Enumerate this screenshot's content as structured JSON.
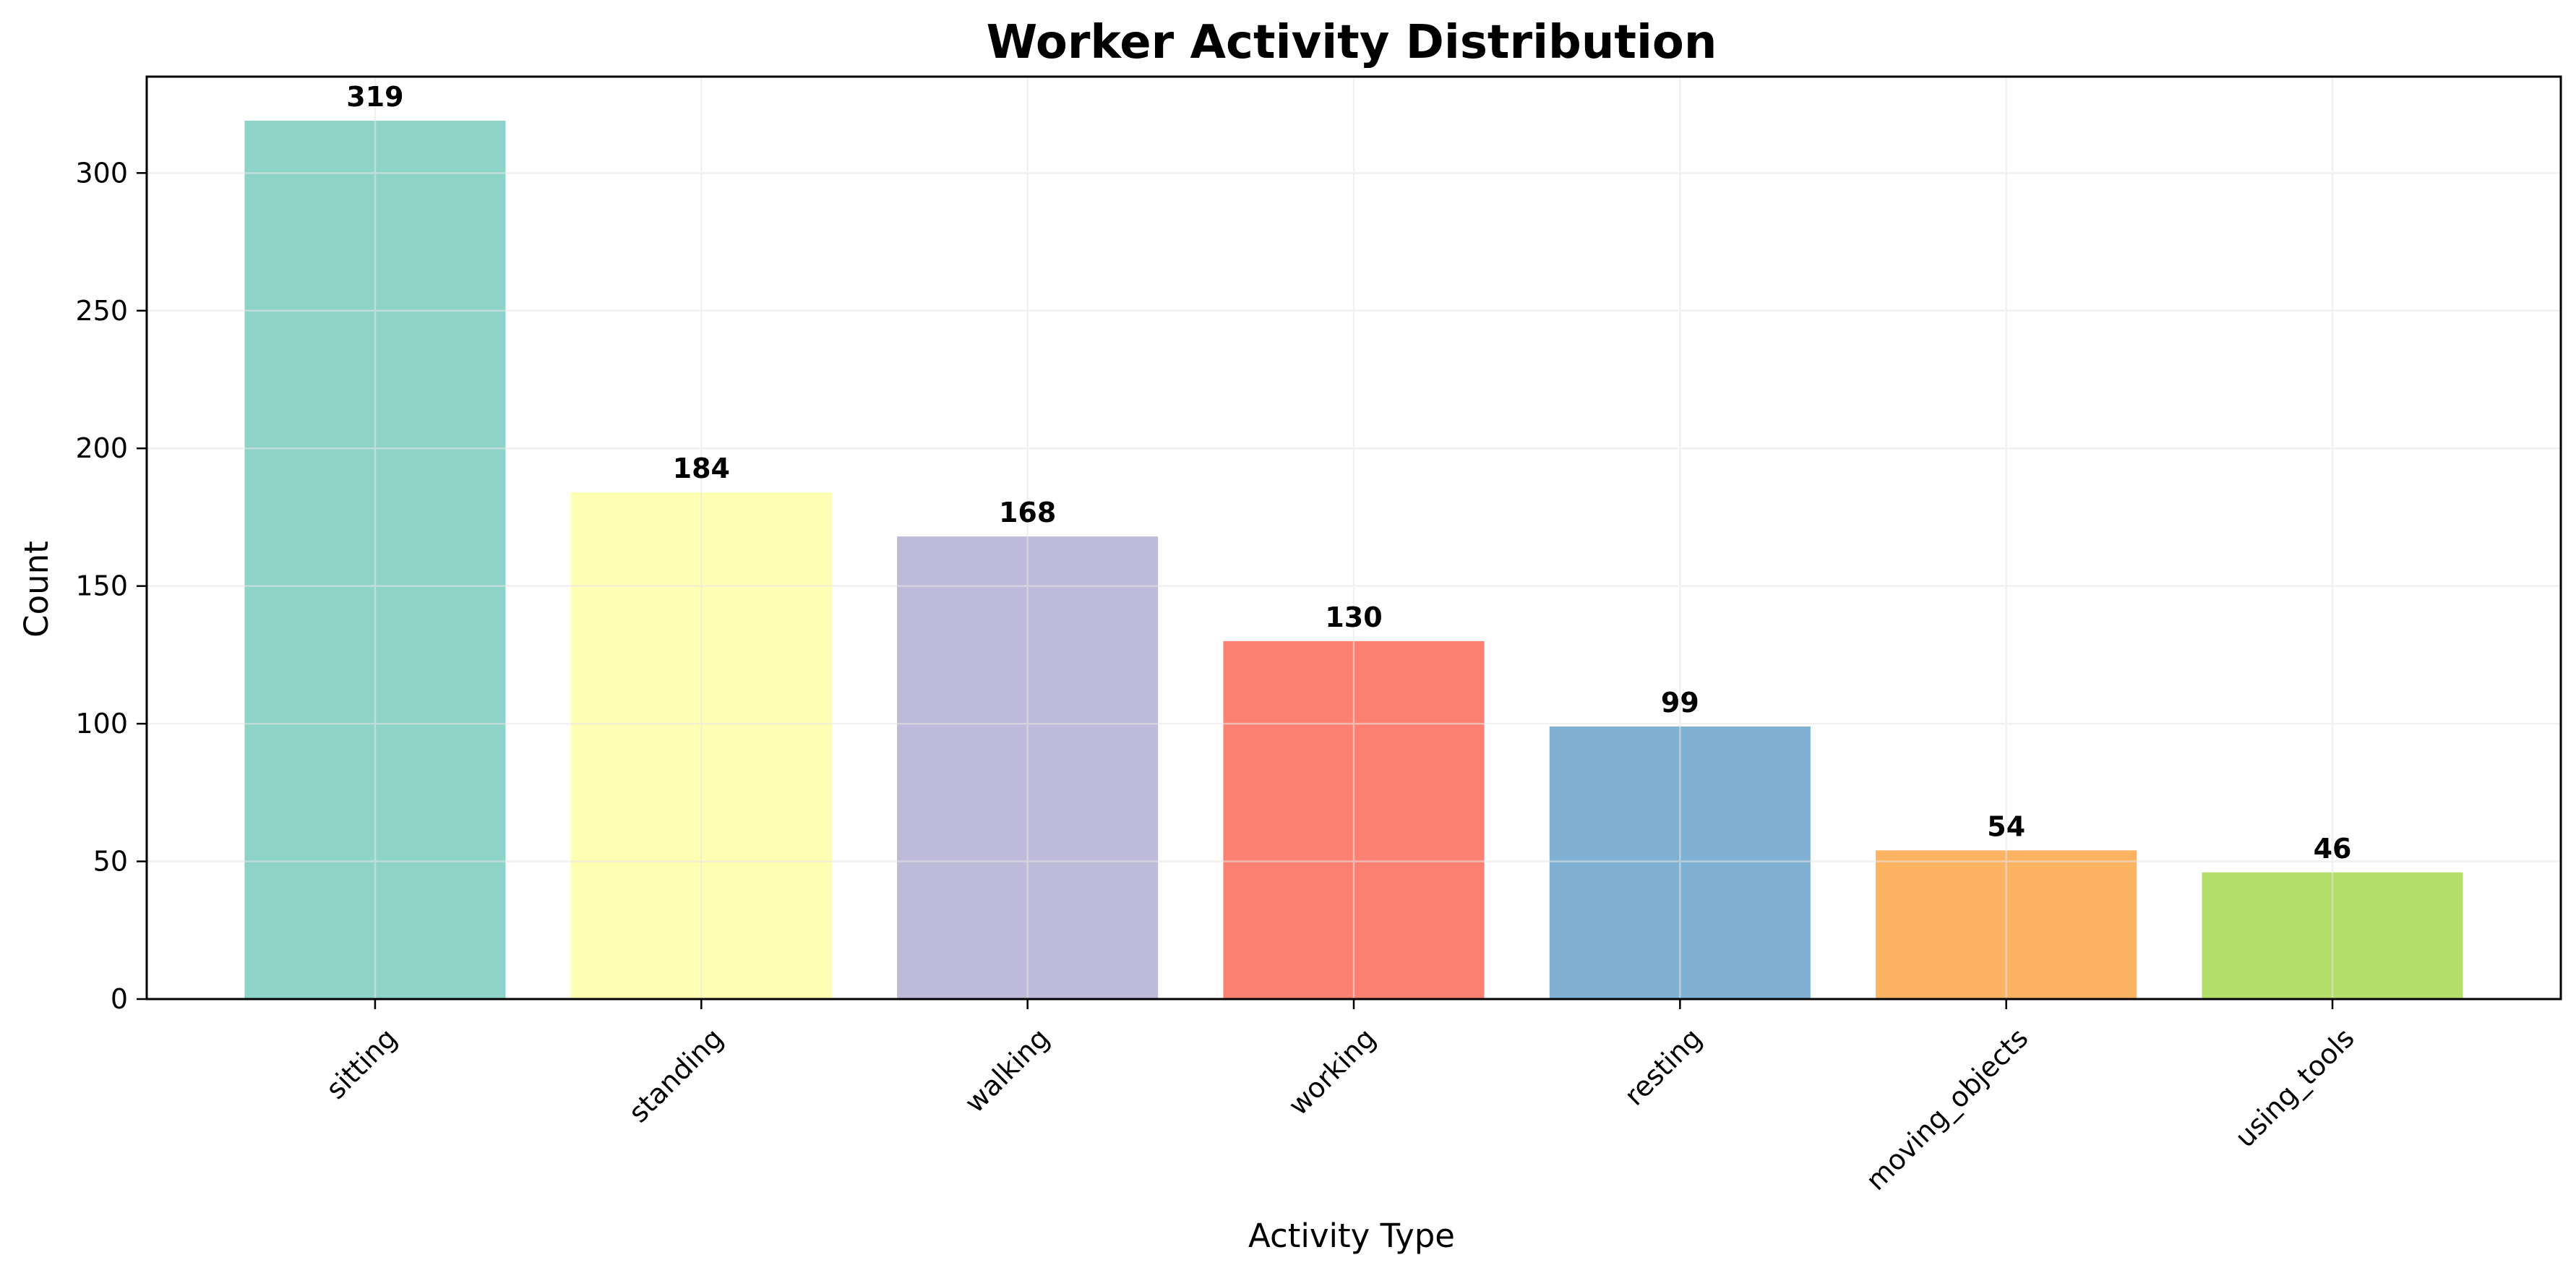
{
  "chart_data": {
    "type": "bar",
    "title": "Worker Activity Distribution",
    "xlabel": "Activity Type",
    "ylabel": "Count",
    "categories": [
      "sitting",
      "standing",
      "walking",
      "working",
      "resting",
      "moving_objects",
      "using_tools"
    ],
    "values": [
      319,
      184,
      168,
      130,
      99,
      54,
      46
    ],
    "colors": [
      "#8dd3c7",
      "#ffffb3",
      "#bebada",
      "#fb8072",
      "#80b1d3",
      "#fdb462",
      "#b3de69"
    ],
    "ylim": [
      0,
      335
    ],
    "yticks": [
      0,
      50,
      100,
      150,
      200,
      250,
      300
    ],
    "grid": true,
    "legend": "none",
    "x_tick_rotation": 45
  }
}
